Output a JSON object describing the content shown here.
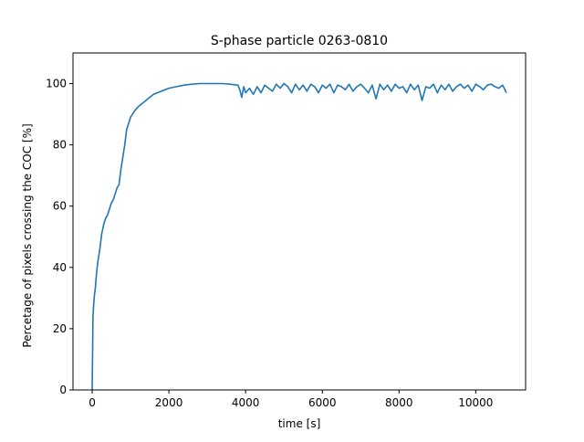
{
  "chart_data": {
    "type": "line",
    "title": "S-phase particle 0263-0810",
    "xlabel": "time [s]",
    "ylabel": "Percetage of pixels crossing the COC [%]",
    "xlim": [
      -500,
      11300
    ],
    "ylim": [
      0,
      110
    ],
    "xticks": [
      0,
      2000,
      4000,
      6000,
      8000,
      10000
    ],
    "yticks": [
      0,
      20,
      40,
      60,
      80,
      100
    ],
    "grid": false,
    "legend": "none",
    "line_color": "#1f77b4",
    "series": [
      {
        "x": [
          0,
          10,
          20,
          40,
          60,
          80,
          100,
          120,
          150,
          200,
          250,
          300,
          350,
          400,
          450,
          500,
          550,
          600,
          650,
          700,
          750,
          800,
          850,
          900,
          1000,
          1100,
          1200,
          1300,
          1400,
          1500,
          1600,
          1700,
          1800,
          1900,
          2000,
          2200,
          2400,
          2600,
          2800,
          3000,
          3200,
          3400,
          3600,
          3800,
          3850,
          3900,
          3950,
          4000,
          4100,
          4200,
          4300,
          4400,
          4500,
          4600,
          4700,
          4800,
          4900,
          5000,
          5100,
          5200,
          5300,
          5400,
          5500,
          5600,
          5700,
          5800,
          5900,
          6000,
          6100,
          6200,
          6300,
          6400,
          6500,
          6600,
          6700,
          6800,
          6900,
          7000,
          7100,
          7200,
          7300,
          7400,
          7500,
          7600,
          7700,
          7800,
          7900,
          8000,
          8100,
          8200,
          8300,
          8400,
          8500,
          8600,
          8700,
          8800,
          8900,
          9000,
          9100,
          9200,
          9300,
          9400,
          9500,
          9600,
          9700,
          9800,
          9900,
          10000,
          10100,
          10200,
          10300,
          10400,
          10500,
          10600,
          10700,
          10800
        ],
        "y": [
          0,
          10,
          24,
          28,
          31,
          33,
          36,
          39,
          42,
          46,
          51,
          54,
          56,
          57,
          59,
          61,
          62,
          64,
          66,
          67,
          72,
          76,
          80,
          85,
          89,
          91,
          92.5,
          93.5,
          94.5,
          95.5,
          96.5,
          97,
          97.5,
          98,
          98.5,
          99,
          99.5,
          99.8,
          100,
          100,
          100,
          100,
          99.8,
          99.5,
          98,
          95.5,
          99,
          97,
          98.5,
          96.5,
          99,
          97,
          99.5,
          98.5,
          97.5,
          99.8,
          98.5,
          100,
          99,
          97,
          99.8,
          98,
          99.5,
          97.5,
          99.8,
          99,
          97,
          99.5,
          98.5,
          99.8,
          97,
          99.5,
          99,
          98,
          99.8,
          97.5,
          99,
          99.8,
          98.5,
          97,
          99.5,
          95,
          99.8,
          98,
          99.5,
          97.5,
          99.8,
          98.5,
          99,
          97,
          99.8,
          98,
          99.5,
          94.5,
          99,
          98.5,
          99.8,
          97,
          99.5,
          98,
          99.8,
          97.5,
          99,
          99.8,
          98.5,
          99.5,
          97.5,
          99.8,
          99,
          98,
          99.5,
          99.8,
          99,
          98.5,
          99.5,
          97
        ]
      }
    ]
  }
}
